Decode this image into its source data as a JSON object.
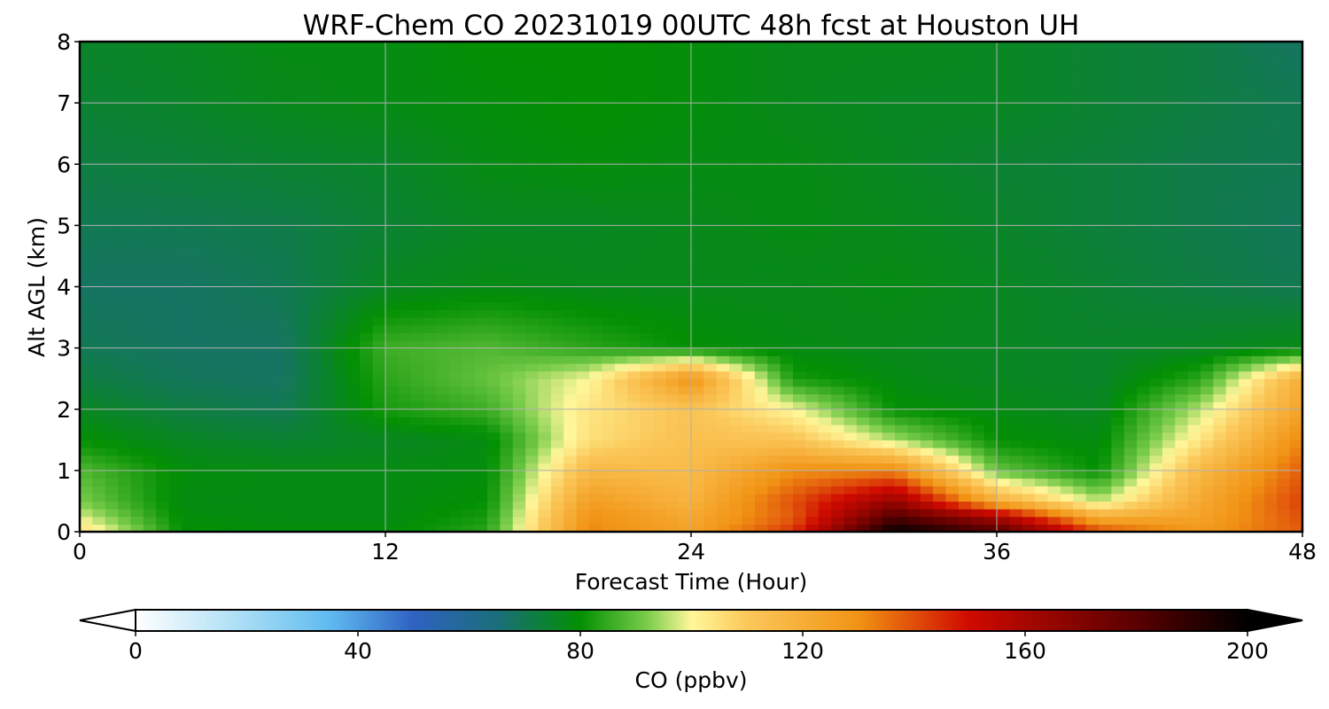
{
  "chart_data": {
    "type": "heatmap",
    "title": "WRF-Chem CO  20231019 00UTC 48h fcst at Houston UH",
    "xlabel": "Forecast Time (Hour)",
    "ylabel": "Alt AGL (km)",
    "xlim": [
      0,
      48
    ],
    "ylim": [
      0,
      8
    ],
    "xticks": [
      0,
      12,
      24,
      36,
      48
    ],
    "xtick_labels": [
      "0",
      "12",
      "24",
      "36",
      "48"
    ],
    "yticks": [
      0,
      1,
      2,
      3,
      4,
      5,
      6,
      7,
      8
    ],
    "ytick_labels": [
      "0",
      "1",
      "2",
      "3",
      "4",
      "5",
      "6",
      "7",
      "8"
    ],
    "grid": true,
    "x": [
      0,
      4,
      8,
      12,
      16,
      20,
      24,
      28,
      32,
      36,
      40,
      44,
      48
    ],
    "y": [
      0,
      0.25,
      0.5,
      1,
      1.5,
      2,
      2.5,
      3,
      4,
      5,
      6,
      7,
      8
    ],
    "z": [
      [
        106,
        80,
        79,
        79,
        84,
        132,
        124,
        144,
        200,
        182,
        141,
        128,
        138
      ],
      [
        98,
        79,
        78,
        78,
        82,
        130,
        122,
        138,
        182,
        160,
        120,
        124,
        140
      ],
      [
        92,
        78,
        78,
        78,
        80,
        126,
        118,
        140,
        165,
        120,
        96,
        122,
        142
      ],
      [
        88,
        79,
        78,
        78,
        79,
        116,
        115,
        130,
        132,
        90,
        80,
        116,
        138
      ],
      [
        80,
        76,
        74,
        76,
        78,
        105,
        113,
        112,
        95,
        80,
        78,
        104,
        132
      ],
      [
        76,
        72,
        70,
        82,
        86,
        104,
        112,
        100,
        80,
        78,
        76,
        96,
        124
      ],
      [
        72,
        69,
        68,
        84,
        90,
        100,
        130,
        82,
        78,
        76,
        75,
        84,
        120
      ],
      [
        70,
        68,
        68,
        86,
        88,
        84,
        80,
        78,
        77,
        76,
        75,
        76,
        78
      ],
      [
        68,
        68,
        70,
        76,
        78,
        77,
        77,
        77,
        78,
        76,
        74,
        72,
        70
      ],
      [
        70,
        70,
        71,
        74,
        76,
        76,
        77,
        78,
        77,
        75,
        73,
        71,
        69
      ],
      [
        72,
        73,
        74,
        75,
        78,
        79,
        78,
        78,
        76,
        74,
        73,
        71,
        70
      ],
      [
        74,
        75,
        77,
        78,
        79,
        80,
        79,
        77,
        76,
        76,
        74,
        72,
        70
      ],
      [
        75,
        76,
        78,
        78,
        80,
        80,
        79,
        77,
        77,
        76,
        74,
        72,
        68
      ]
    ],
    "colorbar": {
      "label": "CO  (ppbv)",
      "min": 0,
      "max": 200,
      "ticks": [
        0,
        40,
        80,
        120,
        160,
        200
      ],
      "tick_labels": [
        "0",
        "40",
        "80",
        "120",
        "160",
        "200"
      ],
      "extend": "both",
      "colors": {
        "0": "#ffffff",
        "20": "#a6dcf5",
        "35": "#5fbaf0",
        "50": "#2f62c2",
        "65": "#1a6e7a",
        "80": "#039003",
        "92": "#7acc4a",
        "100": "#fff79a",
        "110": "#fbc85a",
        "130": "#f19314",
        "150": "#cf0a00",
        "180": "#5a0000",
        "200": "#000000"
      }
    }
  }
}
